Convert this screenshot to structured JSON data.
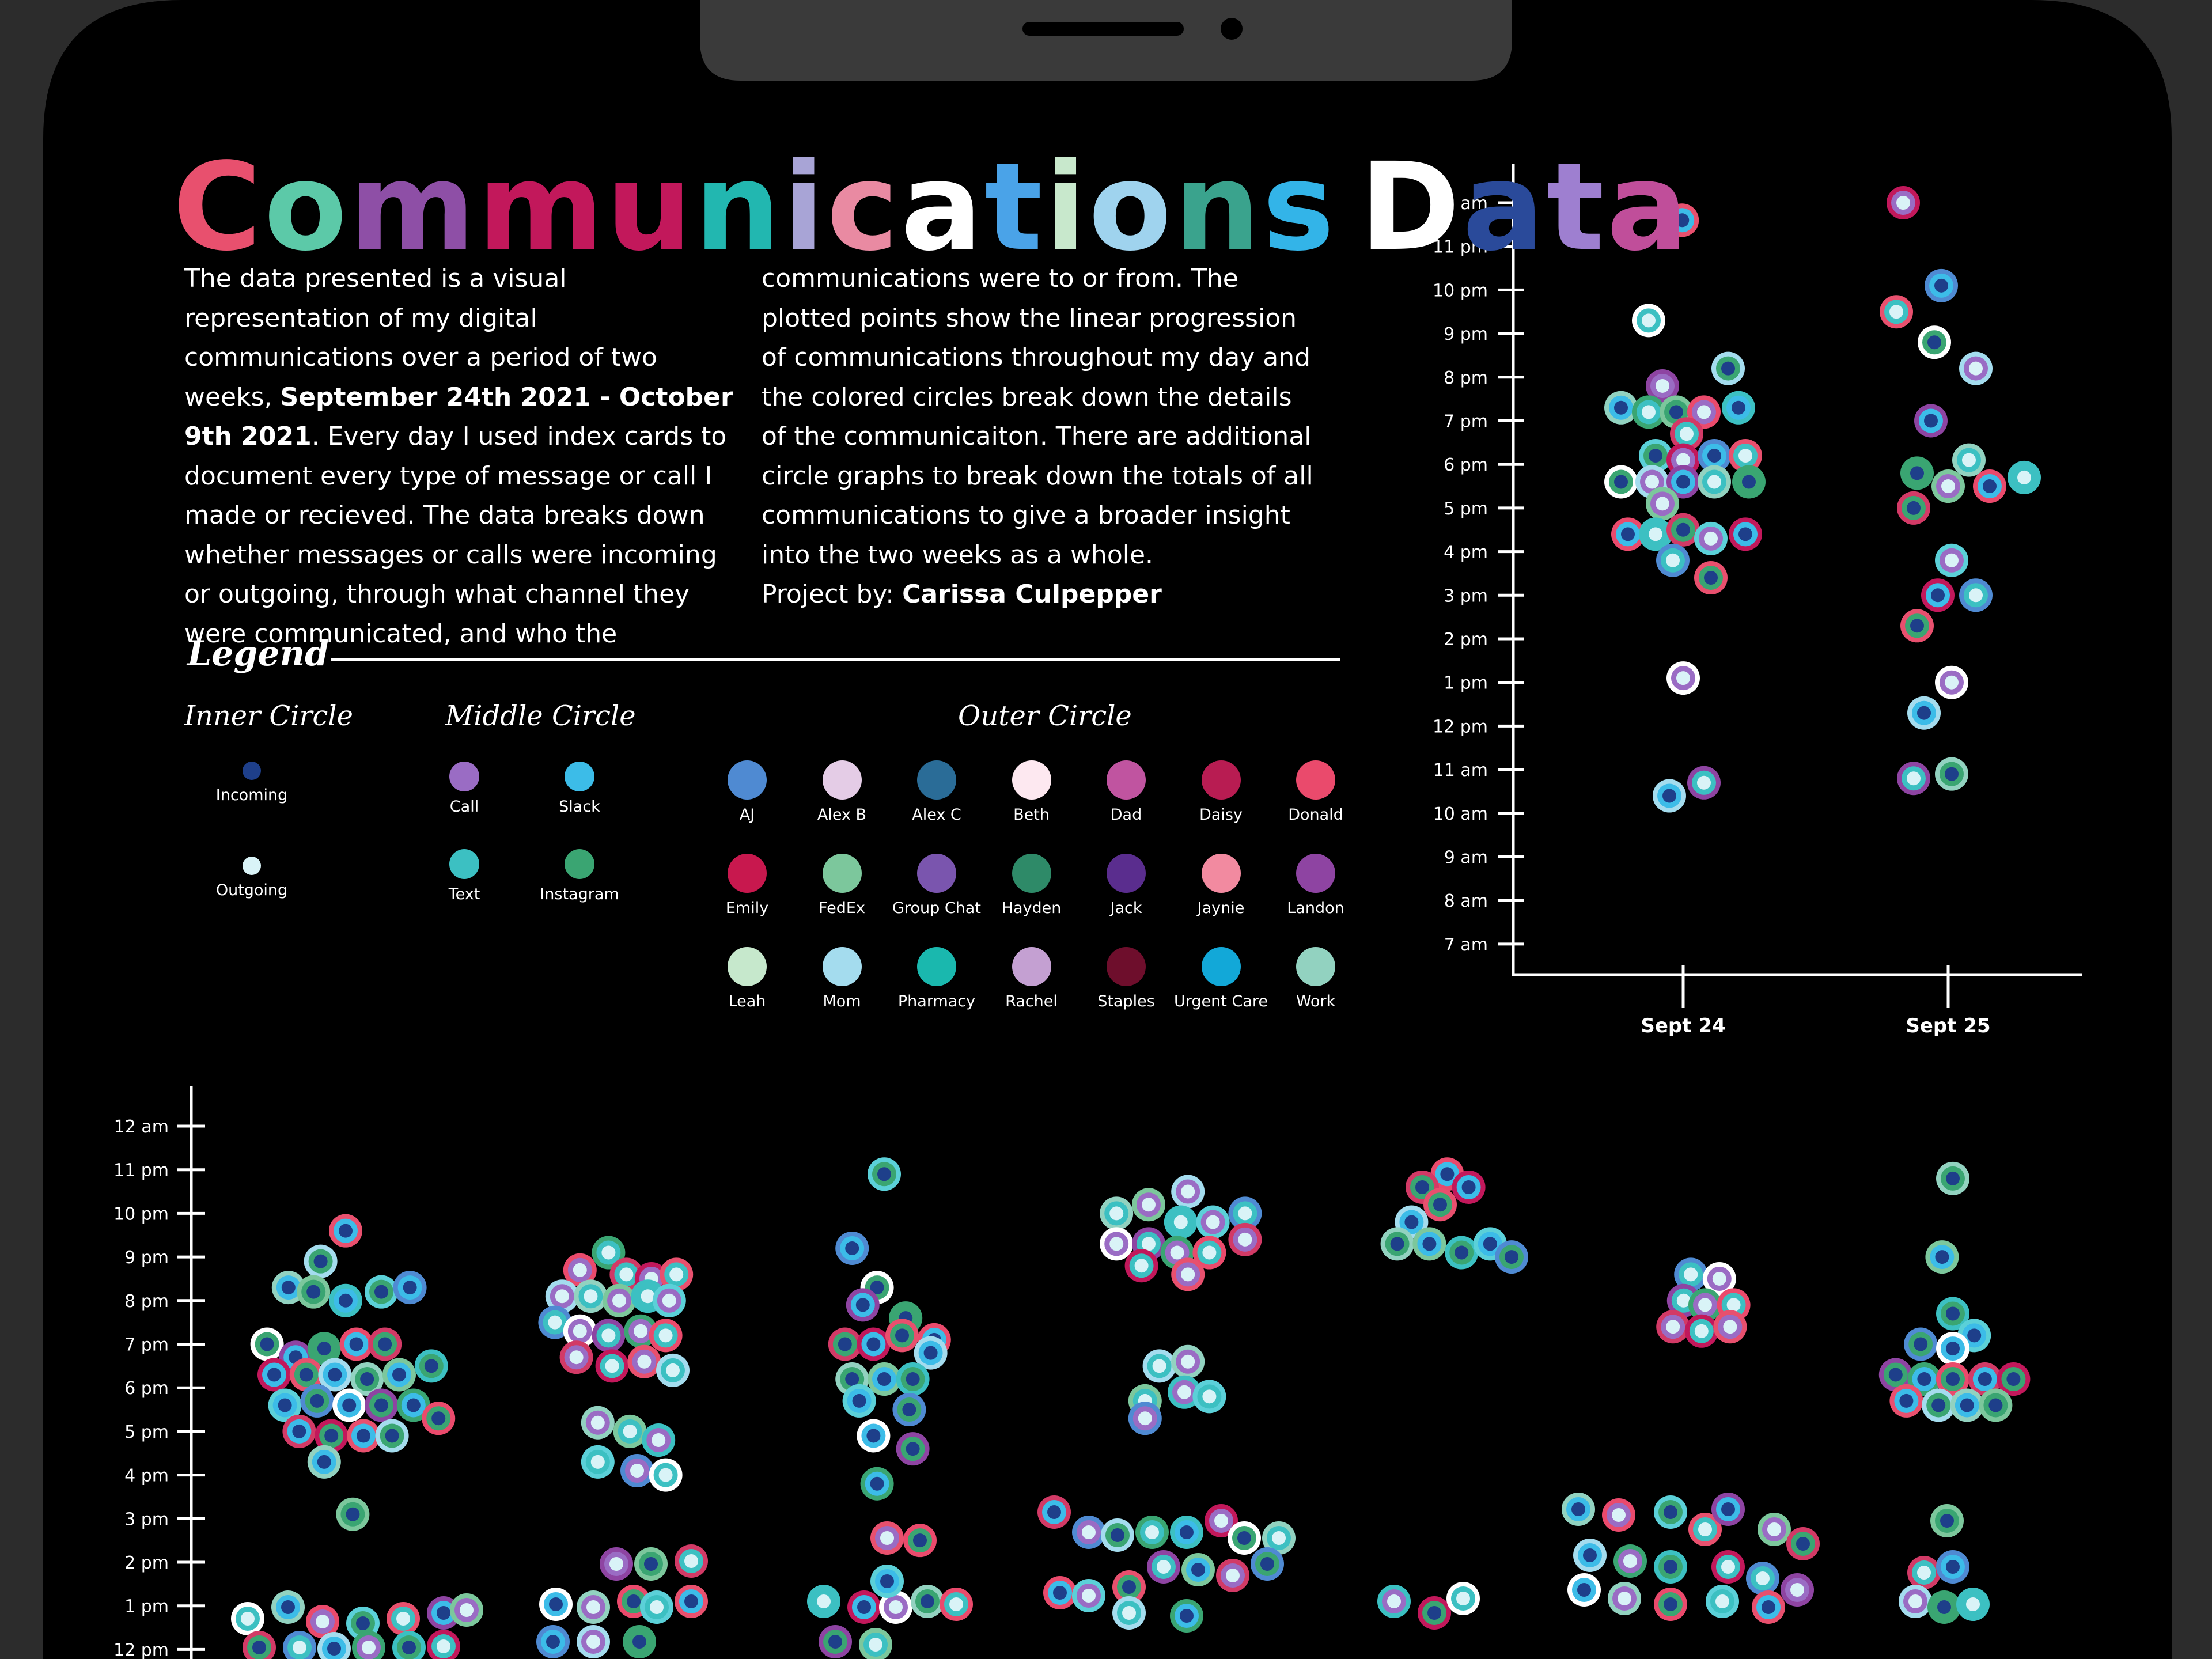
{
  "title": {
    "text": "Communications Data",
    "letter_colors": [
      "#e8506e",
      "#5cc9a8",
      "#8e4fa6",
      "#c2185b",
      "#c2185b",
      "#22b7b0",
      "#a8a4d6",
      "#e98aa2",
      "#ffffff",
      "#4aa3e8",
      "#c8e8cc",
      "#9fd3ee",
      "#3aa38d",
      "#33b4e8",
      "#ffffff",
      "#2a4a9a",
      "#9e7fd0",
      "#c04e9a",
      "#d0eef6"
    ]
  },
  "description": {
    "col1_parts": [
      {
        "t": "The data presented is a visual representation of my digital communications over a period of two weeks, ",
        "b": false
      },
      {
        "t": "September 24th 2021 - October 9th 2021",
        "b": true
      },
      {
        "t": ". Every day I used index cards to document every type of message or call I made or recieved. The data breaks down whether messages or calls were incoming or outgoing, through what channel they were communicated, and who the",
        "b": false
      }
    ],
    "col2_parts": [
      {
        "t": "communications were to or from. The plotted points show the linear progression of communications throughout my day and the colored circles break down the details of the communicaiton. There are additional circle graphs to break down the totals of all communications to give a broader insight into the two weeks as a whole.",
        "b": false
      }
    ],
    "credit_prefix": "Project by: ",
    "credit_name": "Carissa Culpepper"
  },
  "legend": {
    "title": "Legend",
    "inner_title": "Inner Circle",
    "middle_title": "Middle Circle",
    "outer_title": "Outer Circle",
    "inner": [
      {
        "label": "Incoming",
        "color": "#1e3f8a"
      },
      {
        "label": "Outgoing",
        "color": "#d9f3f7"
      }
    ],
    "middle": [
      {
        "label": "Call",
        "color": "#9a6cc4"
      },
      {
        "label": "Slack",
        "color": "#3cbce8"
      },
      {
        "label": "Text",
        "color": "#3cc0c2"
      },
      {
        "label": "Instagram",
        "color": "#3aa572"
      }
    ],
    "outer": [
      {
        "label": "AJ",
        "color": "#4f8ad2"
      },
      {
        "label": "Alex B",
        "color": "#e4cce6"
      },
      {
        "label": "Alex C",
        "color": "#2a6c97"
      },
      {
        "label": "Beth",
        "color": "#fde8f0"
      },
      {
        "label": "Dad",
        "color": "#c054a0"
      },
      {
        "label": "Daisy",
        "color": "#b81c52"
      },
      {
        "label": "Donald",
        "color": "#ea4a6c"
      },
      {
        "label": "Emily",
        "color": "#c8184e"
      },
      {
        "label": "FedEx",
        "color": "#7cc79c"
      },
      {
        "label": "Group Chat",
        "color": "#7a55ae"
      },
      {
        "label": "Hayden",
        "color": "#2e8a68"
      },
      {
        "label": "Jack",
        "color": "#5a2d8e"
      },
      {
        "label": "Jaynie",
        "color": "#f28aa0"
      },
      {
        "label": "Landon",
        "color": "#8e44a2"
      },
      {
        "label": "Leah",
        "color": "#c6e8cc"
      },
      {
        "label": "Mom",
        "color": "#a4dcee"
      },
      {
        "label": "Pharmacy",
        "color": "#1ab8ae"
      },
      {
        "label": "Rachel",
        "color": "#c4a0d2"
      },
      {
        "label": "Staples",
        "color": "#6e0e2c"
      },
      {
        "label": "Urgent Care",
        "color": "#12a8d8"
      },
      {
        "label": "Work",
        "color": "#92d2c0"
      }
    ]
  },
  "chart_data": [
    {
      "type": "scatter",
      "subtype": "beeswarm",
      "y_ticks": [
        "12 am",
        "11 pm",
        "10 pm",
        "9 pm",
        "8 pm",
        "7 pm",
        "6 pm",
        "5 pm",
        "4 pm",
        "3 pm",
        "2 pm",
        "1 pm",
        "12 pm",
        "11 am",
        "10 am",
        "9 am",
        "8 am",
        "7 am"
      ],
      "categories": [
        "Sept 24",
        "Sept 25"
      ],
      "series": [
        {
          "day": "Sept 24",
          "points": [
            [
              -0.03,
              23.6
            ],
            [
              -1.0,
              21.3
            ],
            [
              1.3,
              20.2
            ],
            [
              -0.6,
              19.8
            ],
            [
              -1.8,
              19.3
            ],
            [
              -1.0,
              19.2
            ],
            [
              -0.2,
              19.2
            ],
            [
              0.6,
              19.2
            ],
            [
              1.6,
              19.3
            ],
            [
              0.1,
              18.7
            ],
            [
              -0.8,
              18.2
            ],
            [
              0.0,
              18.1
            ],
            [
              0.9,
              18.2
            ],
            [
              1.8,
              18.2
            ],
            [
              -1.8,
              17.6
            ],
            [
              -0.9,
              17.6
            ],
            [
              0.0,
              17.6
            ],
            [
              0.9,
              17.6
            ],
            [
              1.9,
              17.6
            ],
            [
              -0.6,
              17.1
            ],
            [
              -1.6,
              16.4
            ],
            [
              -0.8,
              16.4
            ],
            [
              0.0,
              16.5
            ],
            [
              0.8,
              16.3
            ],
            [
              1.8,
              16.4
            ],
            [
              -0.3,
              15.8
            ],
            [
              0.8,
              15.4
            ],
            [
              0.0,
              13.1
            ],
            [
              -0.4,
              10.4
            ],
            [
              0.6,
              10.7
            ]
          ]
        },
        {
          "day": "Sept 25",
          "points": [
            [
              -1.3,
              24.0
            ],
            [
              -0.2,
              22.1
            ],
            [
              -1.5,
              21.5
            ],
            [
              -0.4,
              20.8
            ],
            [
              0.8,
              20.2
            ],
            [
              -0.5,
              19.0
            ],
            [
              0.6,
              18.1
            ],
            [
              -0.9,
              17.8
            ],
            [
              0.0,
              17.5
            ],
            [
              1.2,
              17.5
            ],
            [
              2.2,
              17.7
            ],
            [
              -1.0,
              17.0
            ],
            [
              0.1,
              15.8
            ],
            [
              -0.3,
              15.0
            ],
            [
              0.8,
              15.0
            ],
            [
              -0.9,
              14.3
            ],
            [
              0.1,
              13.0
            ],
            [
              -0.7,
              12.3
            ],
            [
              -1.0,
              10.8
            ],
            [
              0.1,
              10.9
            ]
          ]
        }
      ]
    },
    {
      "type": "scatter",
      "subtype": "beeswarm",
      "y_ticks": [
        "12 am",
        "11 pm",
        "10 pm",
        "9 pm",
        "8 pm",
        "7 pm",
        "6 pm",
        "5 pm",
        "4 pm",
        "3 pm",
        "2 pm",
        "1 pm",
        "12 pm"
      ],
      "columns": 7,
      "series": [
        {
          "column": 1,
          "points": [
            [
              0.0,
              21.6
            ],
            [
              -0.7,
              20.9
            ],
            [
              -1.6,
              20.3
            ],
            [
              -0.9,
              20.2
            ],
            [
              0.0,
              20.0
            ],
            [
              1.0,
              20.2
            ],
            [
              1.8,
              20.3
            ],
            [
              -2.2,
              19.0
            ],
            [
              -1.4,
              18.7
            ],
            [
              -0.6,
              18.9
            ],
            [
              0.3,
              19.0
            ],
            [
              1.1,
              19.0
            ],
            [
              -2.0,
              18.3
            ],
            [
              -1.1,
              18.3
            ],
            [
              -0.3,
              18.3
            ],
            [
              0.6,
              18.2
            ],
            [
              1.5,
              18.3
            ],
            [
              2.4,
              18.5
            ],
            [
              -1.7,
              17.6
            ],
            [
              -0.8,
              17.7
            ],
            [
              0.1,
              17.6
            ],
            [
              1.0,
              17.6
            ],
            [
              1.9,
              17.6
            ],
            [
              2.6,
              17.3
            ],
            [
              -1.3,
              17.0
            ],
            [
              -0.4,
              16.9
            ],
            [
              0.5,
              16.9
            ],
            [
              1.3,
              16.9
            ],
            [
              -0.6,
              16.3
            ],
            [
              0.2,
              15.1
            ]
          ]
        },
        {
          "column": 2,
          "points": [
            [
              -0.3,
              21.1
            ],
            [
              -1.1,
              20.7
            ],
            [
              0.2,
              20.6
            ],
            [
              0.9,
              20.5
            ],
            [
              1.6,
              20.6
            ],
            [
              -1.6,
              20.1
            ],
            [
              -0.8,
              20.1
            ],
            [
              0.0,
              20.0
            ],
            [
              0.8,
              20.1
            ],
            [
              1.4,
              20.0
            ],
            [
              -1.8,
              19.5
            ],
            [
              -1.1,
              19.3
            ],
            [
              -0.3,
              19.2
            ],
            [
              0.6,
              19.3
            ],
            [
              1.3,
              19.2
            ],
            [
              -1.2,
              18.7
            ],
            [
              -0.2,
              18.5
            ],
            [
              0.7,
              18.6
            ],
            [
              1.5,
              18.4
            ],
            [
              -0.6,
              17.2
            ],
            [
              0.3,
              17.0
            ],
            [
              1.1,
              16.8
            ],
            [
              -0.6,
              16.3
            ],
            [
              0.5,
              16.1
            ],
            [
              1.3,
              16.0
            ]
          ]
        },
        {
          "column": 3,
          "points": [
            [
              0.0,
              22.9
            ],
            [
              -0.9,
              21.2
            ],
            [
              -0.2,
              20.3
            ],
            [
              -0.6,
              19.9
            ],
            [
              0.6,
              19.6
            ],
            [
              1.4,
              19.1
            ],
            [
              -1.1,
              19.0
            ],
            [
              -0.3,
              19.0
            ],
            [
              0.5,
              19.2
            ],
            [
              1.3,
              18.8
            ],
            [
              -0.9,
              18.2
            ],
            [
              0.0,
              18.2
            ],
            [
              0.8,
              18.2
            ],
            [
              -0.7,
              17.7
            ],
            [
              0.7,
              17.5
            ],
            [
              -0.3,
              16.9
            ],
            [
              0.8,
              16.6
            ],
            [
              -0.2,
              15.8
            ],
            [
              1.0,
              14.5
            ]
          ]
        },
        {
          "column": 4,
          "points": [
            [
              0.6,
              22.5
            ],
            [
              -1.4,
              22.0
            ],
            [
              -0.5,
              22.2
            ],
            [
              0.4,
              21.8
            ],
            [
              1.3,
              21.8
            ],
            [
              2.2,
              22.0
            ],
            [
              -1.4,
              21.3
            ],
            [
              -0.5,
              21.3
            ],
            [
              0.3,
              21.1
            ],
            [
              1.2,
              21.1
            ],
            [
              2.2,
              21.4
            ],
            [
              -0.7,
              20.8
            ],
            [
              0.6,
              20.6
            ],
            [
              -0.2,
              18.5
            ],
            [
              0.6,
              18.6
            ],
            [
              -0.6,
              17.7
            ],
            [
              0.5,
              17.9
            ],
            [
              1.2,
              17.8
            ],
            [
              -0.6,
              17.3
            ]
          ]
        },
        {
          "column": 5,
          "points": [
            [
              0.2,
              22.9
            ],
            [
              -0.5,
              22.6
            ],
            [
              0.8,
              22.6
            ],
            [
              0.0,
              22.2
            ],
            [
              -0.8,
              21.8
            ],
            [
              -1.2,
              21.3
            ],
            [
              -0.3,
              21.3
            ],
            [
              0.6,
              21.1
            ],
            [
              1.4,
              21.3
            ],
            [
              2.0,
              21.0
            ]
          ]
        },
        {
          "column": 6,
          "points": [
            [
              -0.4,
              20.6
            ],
            [
              0.4,
              20.5
            ],
            [
              -0.6,
              20.0
            ],
            [
              0.0,
              19.9
            ],
            [
              0.8,
              19.9
            ],
            [
              -0.9,
              19.4
            ],
            [
              -0.1,
              19.3
            ],
            [
              0.7,
              19.4
            ]
          ]
        },
        {
          "column": 7,
          "points": [
            [
              0.0,
              22.8
            ],
            [
              -0.3,
              21.0
            ],
            [
              0.0,
              19.7
            ],
            [
              0.6,
              19.2
            ],
            [
              -0.9,
              19.0
            ],
            [
              0.0,
              18.9
            ],
            [
              -1.6,
              18.3
            ],
            [
              -0.8,
              18.2
            ],
            [
              0.0,
              18.2
            ],
            [
              0.9,
              18.2
            ],
            [
              1.7,
              18.2
            ],
            [
              -1.3,
              17.7
            ],
            [
              -0.4,
              17.6
            ],
            [
              0.4,
              17.6
            ],
            [
              1.2,
              17.6
            ]
          ]
        }
      ]
    }
  ]
}
